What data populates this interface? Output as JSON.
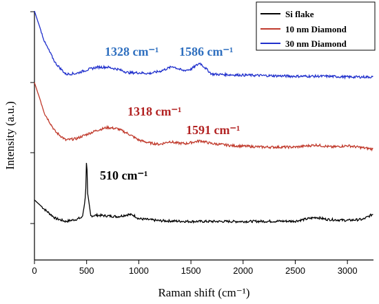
{
  "chart_data": {
    "type": "line",
    "xlabel": "Raman shift (cm⁻¹)",
    "ylabel": "Intensity (a.u.)",
    "xlim": [
      0,
      3250
    ],
    "x_ticks": [
      0,
      500,
      1000,
      1500,
      2000,
      2500,
      3000
    ],
    "y_tick_labels_shown": false,
    "grid": false,
    "legend_position": "top-right",
    "series": [
      {
        "name": "Si flake",
        "color": "#000000",
        "points": [
          [
            0,
            0.34
          ],
          [
            100,
            0.2
          ],
          [
            200,
            0.075
          ],
          [
            300,
            0.03
          ],
          [
            400,
            0.06
          ],
          [
            460,
            0.09
          ],
          [
            490,
            0.4
          ],
          [
            500,
            1.0
          ],
          [
            510,
            0.42
          ],
          [
            540,
            0.11
          ],
          [
            600,
            0.12
          ],
          [
            700,
            0.11
          ],
          [
            800,
            0.1
          ],
          [
            900,
            0.13
          ],
          [
            950,
            0.12
          ],
          [
            1000,
            0.07
          ],
          [
            1200,
            0.04
          ],
          [
            1500,
            0.03
          ],
          [
            2000,
            0.03
          ],
          [
            2500,
            0.035
          ],
          [
            2700,
            0.09
          ],
          [
            2800,
            0.06
          ],
          [
            3000,
            0.045
          ],
          [
            3150,
            0.06
          ],
          [
            3250,
            0.14
          ]
        ]
      },
      {
        "name": "10 nm Diamond",
        "color": "#c0392b",
        "points": [
          [
            0,
            1.0
          ],
          [
            100,
            0.55
          ],
          [
            200,
            0.3
          ],
          [
            300,
            0.18
          ],
          [
            400,
            0.2
          ],
          [
            500,
            0.26
          ],
          [
            600,
            0.32
          ],
          [
            700,
            0.36
          ],
          [
            800,
            0.34
          ],
          [
            900,
            0.27
          ],
          [
            1000,
            0.18
          ],
          [
            1100,
            0.14
          ],
          [
            1200,
            0.12
          ],
          [
            1300,
            0.16
          ],
          [
            1350,
            0.14
          ],
          [
            1450,
            0.13
          ],
          [
            1590,
            0.17
          ],
          [
            1700,
            0.13
          ],
          [
            1900,
            0.1
          ],
          [
            2200,
            0.08
          ],
          [
            2500,
            0.08
          ],
          [
            2700,
            0.11
          ],
          [
            2850,
            0.08
          ],
          [
            3000,
            0.1
          ],
          [
            3250,
            0.05
          ]
        ]
      },
      {
        "name": "30 nm Diamond",
        "color": "#1f2fcc",
        "points": [
          [
            0,
            1.0
          ],
          [
            100,
            0.55
          ],
          [
            200,
            0.26
          ],
          [
            300,
            0.1
          ],
          [
            400,
            0.11
          ],
          [
            500,
            0.16
          ],
          [
            600,
            0.2
          ],
          [
            700,
            0.2
          ],
          [
            800,
            0.17
          ],
          [
            900,
            0.12
          ],
          [
            1000,
            0.12
          ],
          [
            1100,
            0.11
          ],
          [
            1200,
            0.14
          ],
          [
            1328,
            0.21
          ],
          [
            1420,
            0.15
          ],
          [
            1500,
            0.17
          ],
          [
            1586,
            0.26
          ],
          [
            1700,
            0.1
          ],
          [
            1900,
            0.09
          ],
          [
            2200,
            0.08
          ],
          [
            2500,
            0.07
          ],
          [
            2800,
            0.07
          ],
          [
            3000,
            0.06
          ],
          [
            3250,
            0.06
          ]
        ]
      }
    ],
    "annotations": [
      {
        "text": "1328 cm⁻¹",
        "color": "#2e6fbf"
      },
      {
        "text": "1586 cm⁻¹",
        "color": "#2e6fbf"
      },
      {
        "text": "1318 cm⁻¹",
        "color": "#b22222"
      },
      {
        "text": "1591 cm⁻¹",
        "color": "#b22222"
      },
      {
        "text": "510 cm⁻¹",
        "color": "#000000"
      }
    ]
  }
}
